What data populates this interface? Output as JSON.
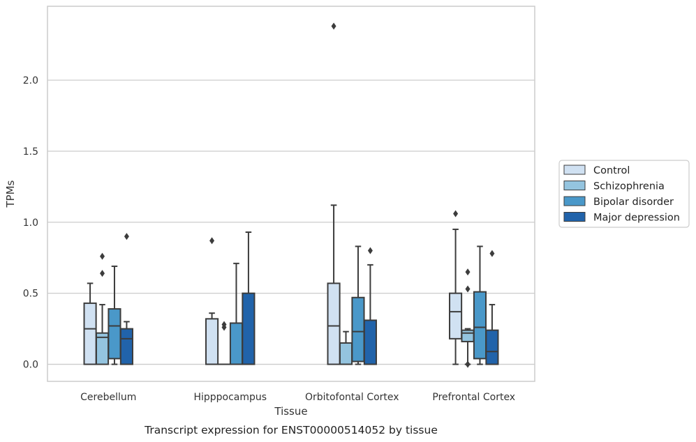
{
  "caption": "Transcript expression for ENST00000514052 by tissue",
  "chart_data": {
    "type": "box",
    "xlabel": "Tissue",
    "ylabel": "TPMs",
    "ylim": [
      -0.12,
      2.52
    ],
    "yticks": [
      "0.0",
      "0.5",
      "1.0",
      "1.5",
      "2.0"
    ],
    "grid": "horizontal",
    "legend_position": "right",
    "categories": [
      "Cerebellum",
      "Hipppocampus",
      "Orbitofontal Cortex",
      "Prefrontal Cortex"
    ],
    "series": [
      {
        "name": "Control",
        "color": "#d0e1f2",
        "boxes": [
          {
            "whislo": 0.0,
            "q1": 0.0,
            "med": 0.25,
            "q3": 0.43,
            "whishi": 0.57,
            "fliers": []
          },
          {
            "whislo": 0.0,
            "q1": 0.0,
            "med": 0.0,
            "q3": 0.32,
            "whishi": 0.36,
            "fliers": [
              0.87
            ]
          },
          {
            "whislo": 0.0,
            "q1": 0.0,
            "med": 0.27,
            "q3": 0.57,
            "whishi": 1.12,
            "fliers": [
              2.38
            ]
          },
          {
            "whislo": 0.0,
            "q1": 0.18,
            "med": 0.37,
            "q3": 0.5,
            "whishi": 0.95,
            "fliers": [
              1.06
            ]
          }
        ]
      },
      {
        "name": "Schizophrenia",
        "color": "#94c4df",
        "boxes": [
          {
            "whislo": 0.0,
            "q1": 0.0,
            "med": 0.19,
            "q3": 0.22,
            "whishi": 0.42,
            "fliers": [
              0.64,
              0.76
            ]
          },
          {
            "whislo": 0.0,
            "q1": 0.0,
            "med": 0.0,
            "q3": 0.0,
            "whishi": 0.0,
            "fliers": [
              0.26,
              0.28
            ]
          },
          {
            "whislo": 0.0,
            "q1": 0.0,
            "med": 0.0,
            "q3": 0.15,
            "whishi": 0.23,
            "fliers": []
          },
          {
            "whislo": 0.0,
            "q1": 0.16,
            "med": 0.22,
            "q3": 0.24,
            "whishi": 0.25,
            "fliers": [
              0.0,
              0.0,
              0.53,
              0.65
            ]
          }
        ]
      },
      {
        "name": "Bipolar disorder",
        "color": "#4a98c9",
        "boxes": [
          {
            "whislo": 0.0,
            "q1": 0.04,
            "med": 0.27,
            "q3": 0.39,
            "whishi": 0.69,
            "fliers": []
          },
          {
            "whislo": 0.0,
            "q1": 0.0,
            "med": 0.0,
            "q3": 0.29,
            "whishi": 0.71,
            "fliers": []
          },
          {
            "whislo": 0.0,
            "q1": 0.02,
            "med": 0.23,
            "q3": 0.47,
            "whishi": 0.83,
            "fliers": []
          },
          {
            "whislo": 0.0,
            "q1": 0.04,
            "med": 0.26,
            "q3": 0.51,
            "whishi": 0.83,
            "fliers": []
          }
        ]
      },
      {
        "name": "Major depression",
        "color": "#2163aa",
        "boxes": [
          {
            "whislo": 0.0,
            "q1": 0.0,
            "med": 0.18,
            "q3": 0.25,
            "whishi": 0.3,
            "fliers": [
              0.9
            ]
          },
          {
            "whislo": 0.0,
            "q1": 0.0,
            "med": 0.0,
            "q3": 0.5,
            "whishi": 0.93,
            "fliers": []
          },
          {
            "whislo": 0.0,
            "q1": 0.0,
            "med": 0.0,
            "q3": 0.31,
            "whishi": 0.7,
            "fliers": [
              0.8
            ]
          },
          {
            "whislo": 0.0,
            "q1": 0.0,
            "med": 0.09,
            "q3": 0.24,
            "whishi": 0.42,
            "fliers": [
              0.78
            ]
          }
        ]
      }
    ]
  }
}
